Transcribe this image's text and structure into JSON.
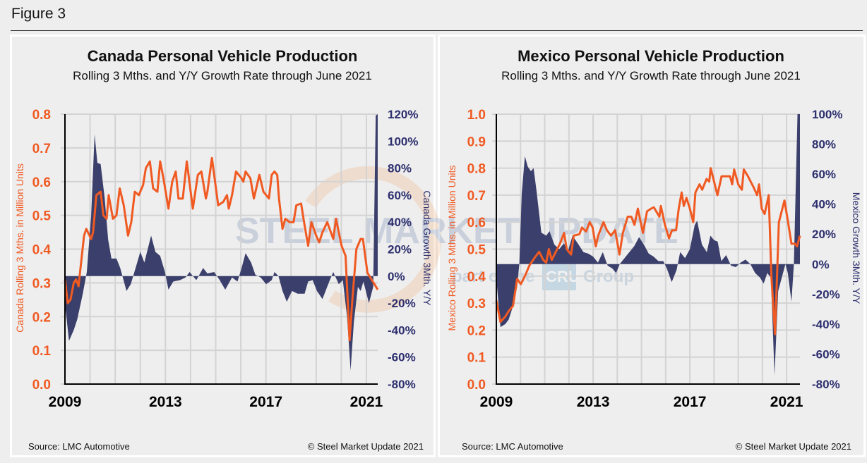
{
  "figure_label": "Figure 3",
  "watermark": {
    "line1": "STEEL MARKET UPDATE",
    "line2a": "part of the",
    "line2b": "CRU",
    "line2c": "Group"
  },
  "colors": {
    "production_line": "#f05a22",
    "growth_area": "#3b3f6b",
    "left_axis_text": "#f05a22",
    "right_axis_text": "#2d2f6e",
    "grid": "#d3d3d3"
  },
  "chart_data": [
    {
      "type": "line+area",
      "title": "Canada Personal Vehicle Production",
      "subtitle": "Rolling 3 Mths. and Y/Y Growth Rate through June 2021",
      "ylabel": "Canada Rolling 3 Mths. in Million Units",
      "y2label": "Canada Growth 3Mth. Y/Y",
      "source": "Source: LMC Automotive",
      "copyright": "© Steel Market Update 2021",
      "xlim": [
        2009,
        2021.45
      ],
      "ylim": [
        0,
        0.8
      ],
      "y2lim": [
        -80,
        120
      ],
      "grid": true,
      "xticks": [
        "2009",
        "2013",
        "2017",
        "2021"
      ],
      "yticks": [
        "0.0",
        "0.1",
        "0.2",
        "0.3",
        "0.4",
        "0.5",
        "0.6",
        "0.7",
        "0.8"
      ],
      "y2ticks": [
        "-80%",
        "-60%",
        "-40%",
        "-20%",
        "0%",
        "20%",
        "40%",
        "60%",
        "80%",
        "100%",
        "120%"
      ],
      "production": {
        "x": [
          2009.0,
          2009.11,
          2009.22,
          2009.35,
          2009.44,
          2009.54,
          2009.76,
          2009.85,
          2010.04,
          2010.12,
          2010.25,
          2010.42,
          2010.53,
          2010.66,
          2010.74,
          2010.91,
          2011.05,
          2011.18,
          2011.34,
          2011.51,
          2011.64,
          2011.78,
          2011.94,
          2012.11,
          2012.22,
          2012.38,
          2012.51,
          2012.68,
          2012.79,
          2012.92,
          2013.12,
          2013.27,
          2013.41,
          2013.52,
          2013.69,
          2013.85,
          2014.09,
          2014.29,
          2014.43,
          2014.61,
          2014.67,
          2014.85,
          2015.1,
          2015.3,
          2015.45,
          2015.52,
          2015.65,
          2015.81,
          2016.03,
          2016.1,
          2016.19,
          2016.38,
          2016.52,
          2016.74,
          2016.9,
          2017.12,
          2017.23,
          2017.34,
          2017.45,
          2017.52,
          2017.66,
          2017.77,
          2017.94,
          2018.1,
          2018.21,
          2018.4,
          2018.54,
          2018.68,
          2018.81,
          2019.0,
          2019.12,
          2019.25,
          2019.44,
          2019.68,
          2019.79,
          2020.01,
          2020.17,
          2020.33,
          2020.44,
          2020.6,
          2020.77,
          2020.86,
          2021.04,
          2021.45
        ],
        "y": [
          0.31,
          0.24,
          0.25,
          0.3,
          0.31,
          0.29,
          0.44,
          0.46,
          0.43,
          0.45,
          0.56,
          0.57,
          0.5,
          0.49,
          0.56,
          0.49,
          0.5,
          0.58,
          0.53,
          0.44,
          0.48,
          0.57,
          0.56,
          0.59,
          0.64,
          0.66,
          0.58,
          0.57,
          0.66,
          0.61,
          0.52,
          0.6,
          0.63,
          0.55,
          0.55,
          0.66,
          0.52,
          0.62,
          0.63,
          0.55,
          0.57,
          0.67,
          0.53,
          0.54,
          0.56,
          0.52,
          0.56,
          0.63,
          0.61,
          0.6,
          0.63,
          0.61,
          0.55,
          0.62,
          0.57,
          0.55,
          0.62,
          0.63,
          0.62,
          0.55,
          0.46,
          0.49,
          0.48,
          0.48,
          0.53,
          0.535,
          0.47,
          0.41,
          0.48,
          0.44,
          0.42,
          0.45,
          0.48,
          0.43,
          0.49,
          0.41,
          0.38,
          0.13,
          0.25,
          0.4,
          0.43,
          0.43,
          0.33,
          0.28
        ]
      },
      "growth_pct": {
        "x": [
          2009.0,
          2009.16,
          2009.35,
          2009.49,
          2009.71,
          2009.87,
          2010.04,
          2010.18,
          2010.29,
          2010.42,
          2010.58,
          2010.72,
          2010.85,
          2011.05,
          2011.2,
          2011.45,
          2011.62,
          2011.78,
          2012.0,
          2012.16,
          2012.43,
          2012.6,
          2012.79,
          2012.98,
          2013.12,
          2013.31,
          2013.58,
          2013.8,
          2013.96,
          2014.23,
          2014.5,
          2014.67,
          2014.94,
          2015.16,
          2015.38,
          2015.65,
          2015.87,
          2016.03,
          2016.19,
          2016.41,
          2016.58,
          2016.79,
          2017.01,
          2017.23,
          2017.34,
          2017.5,
          2017.66,
          2017.83,
          2018.04,
          2018.26,
          2018.54,
          2018.68,
          2018.86,
          2019.03,
          2019.25,
          2019.52,
          2019.68,
          2019.9,
          2020.06,
          2020.23,
          2020.37,
          2020.5,
          2020.66,
          2020.77,
          2020.88,
          2021.1,
          2021.27,
          2021.37,
          2021.45
        ],
        "y": [
          -20,
          -48,
          -40,
          -32,
          -13,
          3,
          44,
          105,
          84,
          83,
          58,
          27,
          13,
          13,
          6,
          -11,
          -6,
          4,
          18,
          10,
          30,
          18,
          15,
          3,
          -10,
          -4,
          -3,
          -1,
          3,
          -3,
          6,
          2,
          3,
          -3,
          -10,
          -1,
          -4,
          6,
          17,
          10,
          1,
          -1,
          -6,
          -3,
          3,
          0,
          -11,
          -19,
          -11,
          -13,
          -13,
          -4,
          -3,
          -11,
          -17,
          -4,
          3,
          -6,
          -3,
          -30,
          -70,
          -34,
          -8,
          -11,
          -4,
          -20,
          -8,
          119,
          120
        ]
      }
    },
    {
      "type": "line+area",
      "title": "Mexico Personal Vehicle Production",
      "subtitle": "Rolling 3 Mths. and Y/Y Growth Rate through June 2021",
      "ylabel": "Mexico Rolling 3 Mths. in Million Units",
      "y2label": "Mexico Growth 3Mth. Y/Y",
      "source": "Source: LMC Automotive",
      "copyright": "© Steel Market Update 2021",
      "xlim": [
        2009,
        2021.55
      ],
      "ylim": [
        0,
        1.0
      ],
      "y2lim": [
        -80,
        100
      ],
      "grid": true,
      "xticks": [
        "2009",
        "2013",
        "2017",
        "2021"
      ],
      "yticks": [
        "0.0",
        "0.1",
        "0.2",
        "0.3",
        "0.4",
        "0.5",
        "0.6",
        "0.7",
        "0.8",
        "0.9",
        "1.0"
      ],
      "y2ticks": [
        "-80%",
        "-60%",
        "-40%",
        "-20%",
        "0%",
        "20%",
        "40%",
        "60%",
        "80%",
        "100%"
      ],
      "production": {
        "x": [
          2009.0,
          2009.17,
          2009.37,
          2009.51,
          2009.69,
          2009.86,
          2010.01,
          2010.18,
          2010.37,
          2010.6,
          2010.77,
          2010.94,
          2011.06,
          2011.17,
          2011.29,
          2011.46,
          2011.63,
          2011.8,
          2011.91,
          2012.09,
          2012.2,
          2012.43,
          2012.54,
          2012.71,
          2012.86,
          2012.98,
          2013.11,
          2013.21,
          2013.43,
          2013.57,
          2013.74,
          2013.91,
          2014.09,
          2014.23,
          2014.43,
          2014.58,
          2014.71,
          2014.85,
          2015.06,
          2015.23,
          2015.4,
          2015.51,
          2015.74,
          2015.8,
          2015.97,
          2016.14,
          2016.26,
          2016.43,
          2016.54,
          2016.66,
          2016.75,
          2016.86,
          2017.0,
          2017.14,
          2017.23,
          2017.4,
          2017.51,
          2017.69,
          2017.8,
          2017.86,
          2018.03,
          2018.14,
          2018.31,
          2018.49,
          2018.66,
          2018.75,
          2018.83,
          2019.0,
          2019.15,
          2019.23,
          2019.4,
          2019.63,
          2019.78,
          2019.86,
          2019.97,
          2020.09,
          2020.26,
          2020.37,
          2020.52,
          2020.68,
          2020.91,
          2021.06,
          2021.2,
          2021.34,
          2021.43,
          2021.55
        ],
        "y": [
          0.31,
          0.23,
          0.25,
          0.27,
          0.29,
          0.39,
          0.37,
          0.4,
          0.44,
          0.47,
          0.49,
          0.46,
          0.45,
          0.5,
          0.46,
          0.49,
          0.52,
          0.56,
          0.5,
          0.48,
          0.55,
          0.555,
          0.58,
          0.565,
          0.6,
          0.58,
          0.51,
          0.55,
          0.6,
          0.57,
          0.55,
          0.57,
          0.48,
          0.56,
          0.62,
          0.62,
          0.59,
          0.65,
          0.56,
          0.64,
          0.65,
          0.655,
          0.62,
          0.66,
          0.59,
          0.54,
          0.57,
          0.57,
          0.65,
          0.71,
          0.66,
          0.69,
          0.65,
          0.6,
          0.71,
          0.74,
          0.72,
          0.76,
          0.75,
          0.8,
          0.74,
          0.7,
          0.77,
          0.77,
          0.77,
          0.74,
          0.795,
          0.74,
          0.72,
          0.795,
          0.77,
          0.73,
          0.7,
          0.74,
          0.65,
          0.63,
          0.7,
          0.4,
          0.185,
          0.6,
          0.68,
          0.6,
          0.52,
          0.52,
          0.51,
          0.55
        ]
      },
      "growth_pct": {
        "x": [
          2009.0,
          2009.03,
          2009.17,
          2009.37,
          2009.51,
          2009.69,
          2009.86,
          2009.95,
          2010.05,
          2010.18,
          2010.3,
          2010.43,
          2010.54,
          2010.66,
          2010.86,
          2011.06,
          2011.2,
          2011.4,
          2011.6,
          2011.8,
          2011.95,
          2012.15,
          2012.4,
          2012.6,
          2012.8,
          2013.0,
          2013.2,
          2013.4,
          2013.6,
          2013.8,
          2013.95,
          2014.1,
          2014.3,
          2014.5,
          2014.7,
          2014.9,
          2015.1,
          2015.3,
          2015.5,
          2015.7,
          2015.9,
          2016.05,
          2016.25,
          2016.45,
          2016.6,
          2016.8,
          2017.0,
          2017.2,
          2017.3,
          2017.5,
          2017.7,
          2017.85,
          2018.0,
          2018.15,
          2018.3,
          2018.5,
          2018.7,
          2018.9,
          2019.1,
          2019.3,
          2019.5,
          2019.7,
          2019.9,
          2020.05,
          2020.2,
          2020.35,
          2020.5,
          2020.65,
          2020.8,
          2020.95,
          2021.05,
          2021.2,
          2021.3,
          2021.45,
          2021.55
        ],
        "y": [
          0,
          -15,
          -42,
          -40,
          -37,
          -28,
          -15,
          0,
          47,
          72,
          65,
          62,
          64,
          49,
          21,
          19,
          22,
          13,
          10,
          14,
          8,
          19,
          13,
          8,
          7,
          5,
          1,
          8,
          -1,
          -3,
          -6,
          0,
          4,
          8,
          12,
          18,
          13,
          7,
          5,
          2,
          2,
          -3,
          -12,
          -4,
          8,
          4,
          10,
          26,
          29,
          13,
          8,
          19,
          16,
          15,
          2,
          6,
          -1,
          -2,
          1,
          3,
          0,
          -6,
          -9,
          -13,
          -6,
          -9,
          -74,
          -18,
          -9,
          0,
          -6,
          -25,
          0,
          100,
          100
        ]
      }
    }
  ]
}
